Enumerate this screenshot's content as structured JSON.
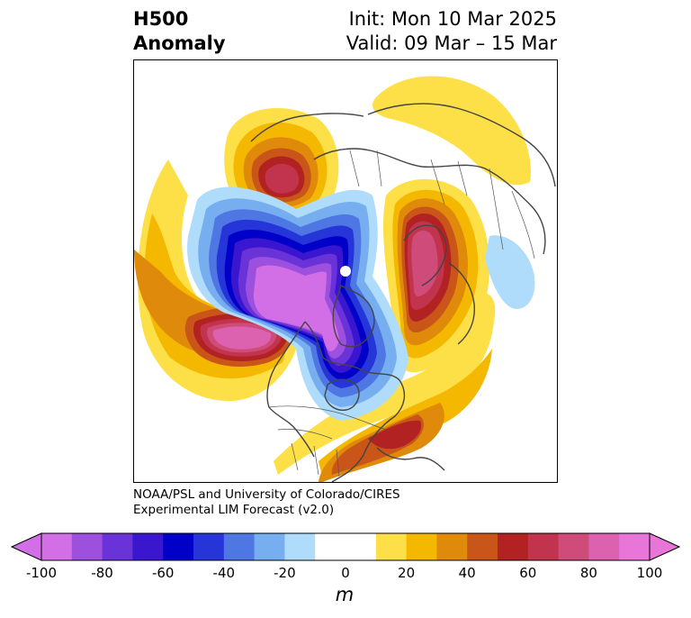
{
  "title": {
    "line1_left": "H500",
    "line2_left": "Anomaly",
    "line1_right": "Init: Mon 10 Mar 2025",
    "line2_right": "Valid: 09 Mar – 15 Mar"
  },
  "credit": {
    "line1": "NOAA/PSL and University of Colorado/CIRES",
    "line2": "Experimental LIM Forecast (v2.0)"
  },
  "colorbar": {
    "label": "m",
    "ticks": [
      "-100",
      "-80",
      "-60",
      "-40",
      "-20",
      "0",
      "20",
      "40",
      "60",
      "80",
      "100"
    ],
    "levels": [
      -100,
      -90,
      -80,
      -70,
      -60,
      -50,
      -40,
      -30,
      -20,
      -10,
      10,
      20,
      30,
      40,
      50,
      60,
      70,
      80,
      90,
      100
    ],
    "colors": [
      "#d36fe6",
      "#9d4fde",
      "#6a33d8",
      "#3a17cf",
      "#0000c8",
      "#2535d8",
      "#4e77e4",
      "#76aef0",
      "#aedcfa",
      "#ffffff",
      "#fde047",
      "#f5b800",
      "#e08a0c",
      "#c95618",
      "#b22222",
      "#c2344e",
      "#cf4b7a",
      "#dc62b0",
      "#e875d8"
    ]
  },
  "map": {
    "projection": "north-polar-stereographic",
    "region": "Northern Hemisphere"
  }
}
